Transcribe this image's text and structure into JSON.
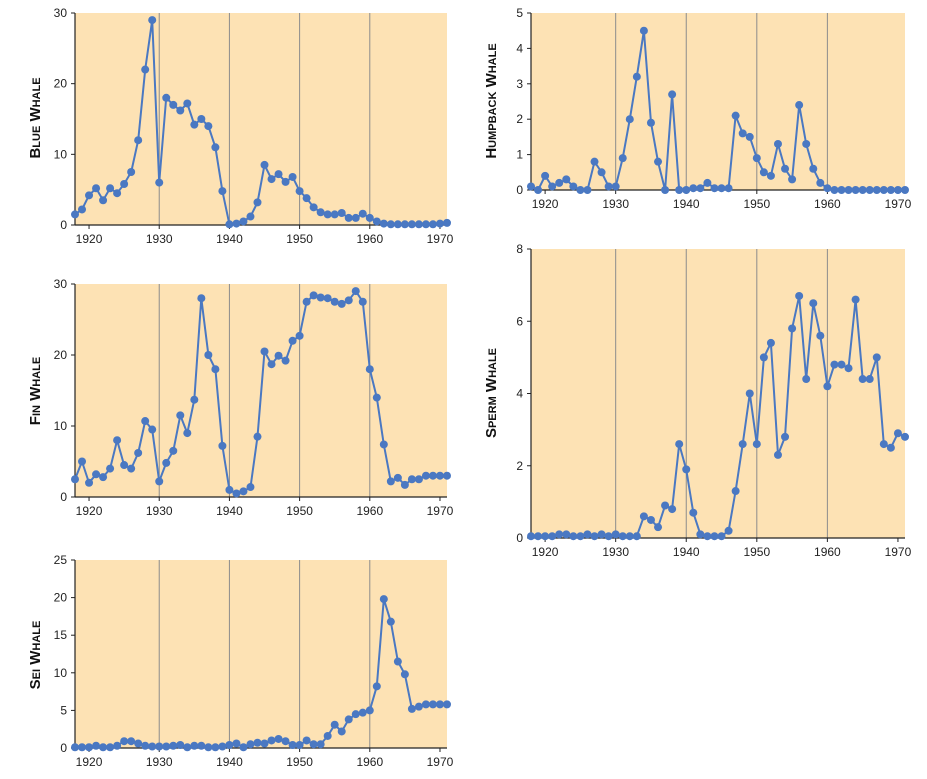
{
  "colors": {
    "plot_bg": "#fde2b4",
    "line": "#4a78c2",
    "gridline": "#8c8c8c",
    "axis": "#222222"
  },
  "chart_data": [
    {
      "type": "line",
      "ylabel": "Blue Whale",
      "xlim": [
        1918,
        1971
      ],
      "ylim": [
        0,
        30
      ],
      "xticks": [
        "1920",
        "1930",
        "1940",
        "1950",
        "1960",
        "1970"
      ],
      "yticks": [
        "0",
        "10",
        "20",
        "30"
      ],
      "gridlines_x": [
        1930,
        1940,
        1950,
        1960
      ],
      "x": [
        1918,
        1919,
        1920,
        1921,
        1922,
        1923,
        1924,
        1925,
        1926,
        1927,
        1928,
        1929,
        1930,
        1931,
        1932,
        1933,
        1934,
        1935,
        1936,
        1937,
        1938,
        1939,
        1940,
        1941,
        1942,
        1943,
        1944,
        1945,
        1946,
        1947,
        1948,
        1949,
        1950,
        1951,
        1952,
        1953,
        1954,
        1955,
        1956,
        1957,
        1958,
        1959,
        1960,
        1961,
        1962,
        1963,
        1964,
        1965,
        1966,
        1967,
        1968,
        1969,
        1970,
        1971
      ],
      "values": [
        1.5,
        2.2,
        4.2,
        5.2,
        3.5,
        5.2,
        4.5,
        5.8,
        7.5,
        12,
        22,
        29,
        6,
        18,
        17,
        16.2,
        17.2,
        14.2,
        15,
        14,
        11,
        4.8,
        0.1,
        0.2,
        0.5,
        1.2,
        3.2,
        8.5,
        6.5,
        7.2,
        6.1,
        6.8,
        4.8,
        3.8,
        2.5,
        1.8,
        1.5,
        1.5,
        1.7,
        1.0,
        1.0,
        1.6,
        1.0,
        0.5,
        0.2,
        0.1,
        0.1,
        0.1,
        0.1,
        0.1,
        0.1,
        0.1,
        0.2,
        0.3
      ]
    },
    {
      "type": "line",
      "ylabel": "Fin Whale",
      "xlim": [
        1918,
        1971
      ],
      "ylim": [
        0,
        30
      ],
      "xticks": [
        "1920",
        "1930",
        "1940",
        "1950",
        "1960",
        "1970"
      ],
      "yticks": [
        "0",
        "10",
        "20",
        "30"
      ],
      "gridlines_x": [
        1930,
        1940,
        1950,
        1960
      ],
      "x": [
        1918,
        1919,
        1920,
        1921,
        1922,
        1923,
        1924,
        1925,
        1926,
        1927,
        1928,
        1929,
        1930,
        1931,
        1932,
        1933,
        1934,
        1935,
        1936,
        1937,
        1938,
        1939,
        1940,
        1941,
        1942,
        1943,
        1944,
        1945,
        1946,
        1947,
        1948,
        1949,
        1950,
        1951,
        1952,
        1953,
        1954,
        1955,
        1956,
        1957,
        1958,
        1959,
        1960,
        1961,
        1962,
        1963,
        1964,
        1965,
        1966,
        1967,
        1968,
        1969,
        1970,
        1971
      ],
      "values": [
        2.5,
        5,
        2,
        3.2,
        2.8,
        4,
        8,
        4.5,
        4,
        6.2,
        10.7,
        9.5,
        2.2,
        4.8,
        6.5,
        11.5,
        9,
        13.7,
        28,
        20,
        18,
        7.2,
        1,
        0.5,
        0.8,
        1.4,
        8.5,
        20.5,
        18.7,
        19.9,
        19.2,
        22,
        22.7,
        27.5,
        28.4,
        28.1,
        28,
        27.5,
        27.2,
        27.7,
        29,
        27.5,
        18,
        14,
        7.4,
        2.2,
        2.7,
        1.7,
        2.5,
        2.5,
        3.0,
        3.0,
        3.0,
        3.0
      ]
    },
    {
      "type": "line",
      "ylabel": "Sei Whale",
      "xlim": [
        1918,
        1971
      ],
      "ylim": [
        0,
        25
      ],
      "xticks": [
        "1920",
        "1930",
        "1940",
        "1950",
        "1960",
        "1970"
      ],
      "yticks": [
        "0",
        "5",
        "10",
        "15",
        "20",
        "25"
      ],
      "gridlines_x": [
        1930,
        1940,
        1950,
        1960
      ],
      "x": [
        1918,
        1919,
        1920,
        1921,
        1922,
        1923,
        1924,
        1925,
        1926,
        1927,
        1928,
        1929,
        1930,
        1931,
        1932,
        1933,
        1934,
        1935,
        1936,
        1937,
        1938,
        1939,
        1940,
        1941,
        1942,
        1943,
        1944,
        1945,
        1946,
        1947,
        1948,
        1949,
        1950,
        1951,
        1952,
        1953,
        1954,
        1955,
        1956,
        1957,
        1958,
        1959,
        1960,
        1961,
        1962,
        1963,
        1964,
        1965,
        1966,
        1967,
        1968,
        1969,
        1970,
        1971
      ],
      "values": [
        0.1,
        0.1,
        0.1,
        0.3,
        0.1,
        0.1,
        0.3,
        0.9,
        0.9,
        0.6,
        0.3,
        0.2,
        0.2,
        0.2,
        0.3,
        0.4,
        0.1,
        0.3,
        0.3,
        0.1,
        0.1,
        0.2,
        0.4,
        0.6,
        0.1,
        0.5,
        0.7,
        0.6,
        1.0,
        1.2,
        0.9,
        0.4,
        0.4,
        1.0,
        0.5,
        0.5,
        1.6,
        3.1,
        2.2,
        3.8,
        4.5,
        4.7,
        5.0,
        8.2,
        19.8,
        16.8,
        11.5,
        9.8,
        5.2,
        5.5,
        5.8,
        5.8,
        5.8,
        5.8
      ]
    },
    {
      "type": "line",
      "ylabel": "Humpback Whale",
      "xlim": [
        1918,
        1971
      ],
      "ylim": [
        0,
        5
      ],
      "xticks": [
        "1920",
        "1930",
        "1940",
        "1950",
        "1960",
        "1970"
      ],
      "yticks": [
        "0",
        "1",
        "2",
        "3",
        "4",
        "5"
      ],
      "gridlines_x": [
        1930,
        1940,
        1950,
        1960
      ],
      "x": [
        1918,
        1919,
        1920,
        1921,
        1922,
        1923,
        1924,
        1925,
        1926,
        1927,
        1928,
        1929,
        1930,
        1931,
        1932,
        1933,
        1934,
        1935,
        1936,
        1937,
        1938,
        1939,
        1940,
        1941,
        1942,
        1943,
        1944,
        1945,
        1946,
        1947,
        1948,
        1949,
        1950,
        1951,
        1952,
        1953,
        1954,
        1955,
        1956,
        1957,
        1958,
        1959,
        1960,
        1961,
        1962,
        1963,
        1964,
        1965,
        1966,
        1967,
        1968,
        1969,
        1970,
        1971
      ],
      "values": [
        0.1,
        0,
        0.4,
        0.1,
        0.2,
        0.3,
        0.1,
        0,
        0,
        0.8,
        0.5,
        0.1,
        0.1,
        0.9,
        2,
        3.2,
        4.5,
        1.9,
        0.8,
        0,
        2.7,
        0,
        0,
        0.05,
        0.05,
        0.2,
        0.05,
        0.05,
        0.05,
        2.1,
        1.6,
        1.5,
        0.9,
        0.5,
        0.4,
        1.3,
        0.6,
        0.3,
        2.4,
        1.3,
        0.6,
        0.2,
        0.05,
        0,
        0,
        0,
        0,
        0,
        0,
        0,
        0,
        0,
        0,
        0
      ]
    },
    {
      "type": "line",
      "ylabel": "Sperm Whale",
      "xlim": [
        1918,
        1971
      ],
      "ylim": [
        0,
        8
      ],
      "xticks": [
        "1920",
        "1930",
        "1940",
        "1950",
        "1960",
        "1970"
      ],
      "yticks": [
        "0",
        "2",
        "4",
        "6",
        "8"
      ],
      "gridlines_x": [
        1930,
        1940,
        1950,
        1960
      ],
      "x": [
        1918,
        1919,
        1920,
        1921,
        1922,
        1923,
        1924,
        1925,
        1926,
        1927,
        1928,
        1929,
        1930,
        1931,
        1932,
        1933,
        1934,
        1935,
        1936,
        1937,
        1938,
        1939,
        1940,
        1941,
        1942,
        1943,
        1944,
        1945,
        1946,
        1947,
        1948,
        1949,
        1950,
        1951,
        1952,
        1953,
        1954,
        1955,
        1956,
        1957,
        1958,
        1959,
        1960,
        1961,
        1962,
        1963,
        1964,
        1965,
        1966,
        1967,
        1968,
        1969,
        1970,
        1971
      ],
      "values": [
        0.05,
        0.05,
        0.05,
        0.05,
        0.1,
        0.1,
        0.05,
        0.05,
        0.1,
        0.05,
        0.1,
        0.05,
        0.1,
        0.05,
        0.05,
        0.05,
        0.6,
        0.5,
        0.3,
        0.9,
        0.8,
        2.6,
        1.9,
        0.7,
        0.1,
        0.05,
        0.05,
        0.05,
        0.2,
        1.3,
        2.6,
        4.0,
        2.6,
        5.0,
        5.4,
        2.3,
        2.8,
        5.8,
        6.7,
        4.4,
        6.5,
        5.6,
        4.2,
        4.8,
        4.8,
        4.7,
        6.6,
        4.4,
        4.4,
        5.0,
        2.6,
        2.5,
        2.9,
        2.8
      ]
    }
  ]
}
